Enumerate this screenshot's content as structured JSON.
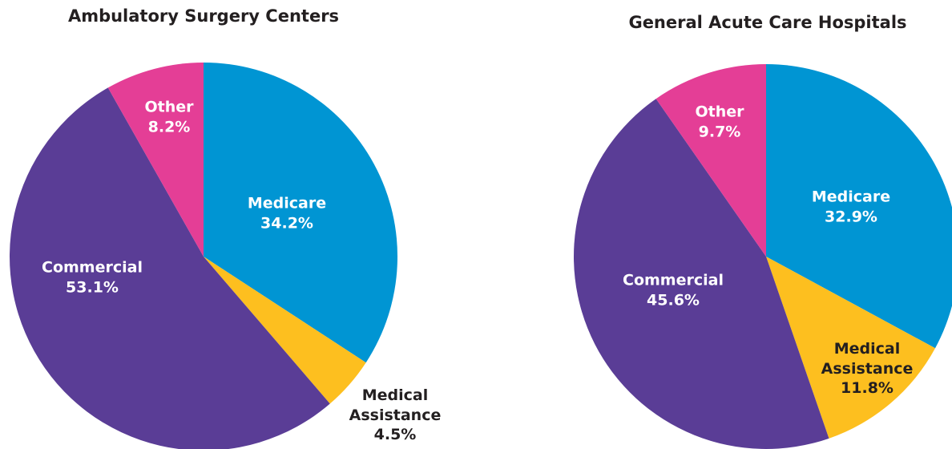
{
  "chart_data": [
    {
      "type": "pie",
      "title": "Ambulatory Surgery Centers",
      "categories": [
        "Medicare",
        "Medical Assistance",
        "Commercial",
        "Other"
      ],
      "values": [
        34.2,
        4.5,
        53.1,
        8.2
      ],
      "value_labels": [
        "34.2%",
        "4.5%",
        "53.1%",
        "8.2%"
      ],
      "colors": [
        "#0095d3",
        "#fdbf1f",
        "#5a3d96",
        "#e43e96"
      ]
    },
    {
      "type": "pie",
      "title": "General Acute Care Hospitals",
      "categories": [
        "Medicare",
        "Medical Assistance",
        "Commercial",
        "Other"
      ],
      "values": [
        32.9,
        11.8,
        45.6,
        9.7
      ],
      "value_labels": [
        "32.9%",
        "11.8%",
        "45.6%",
        "9.7%"
      ],
      "colors": [
        "#0095d3",
        "#fdbf1f",
        "#5a3d96",
        "#e43e96"
      ]
    }
  ]
}
